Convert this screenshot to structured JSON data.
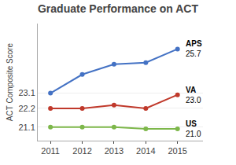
{
  "chart_data": {
    "type": "line",
    "title": "Graduate Performance on ACT",
    "ylabel": "ACT Composite Score",
    "x": [
      2011,
      2012,
      2013,
      2014,
      2015
    ],
    "series": [
      {
        "name": "APS",
        "color": "#4472c4",
        "values": [
          23.1,
          24.2,
          24.8,
          24.9,
          25.7
        ]
      },
      {
        "name": "VA",
        "color": "#c0392b",
        "values": [
          22.2,
          22.2,
          22.4,
          22.2,
          23.0
        ]
      },
      {
        "name": "US",
        "color": "#7db74a",
        "values": [
          21.1,
          21.1,
          21.1,
          21.0,
          21.0
        ]
      }
    ],
    "annotations": [
      {
        "x": 2015,
        "y": 25.7,
        "lines": [
          "APS",
          "25.7"
        ]
      },
      {
        "x": 2015,
        "y": 23.0,
        "lines": [
          "VA",
          "23.0"
        ]
      },
      {
        "x": 2015,
        "y": 21.0,
        "lines": [
          "US",
          "21.0"
        ]
      }
    ],
    "xlim": [
      2010.6,
      2015.8
    ],
    "xticks": [
      2011,
      2012,
      2013,
      2014,
      2015
    ],
    "ylim": [
      20.3,
      27.2
    ],
    "yticks": [
      21.1,
      22.2,
      23.1
    ],
    "marker": "circle",
    "grid": true
  }
}
